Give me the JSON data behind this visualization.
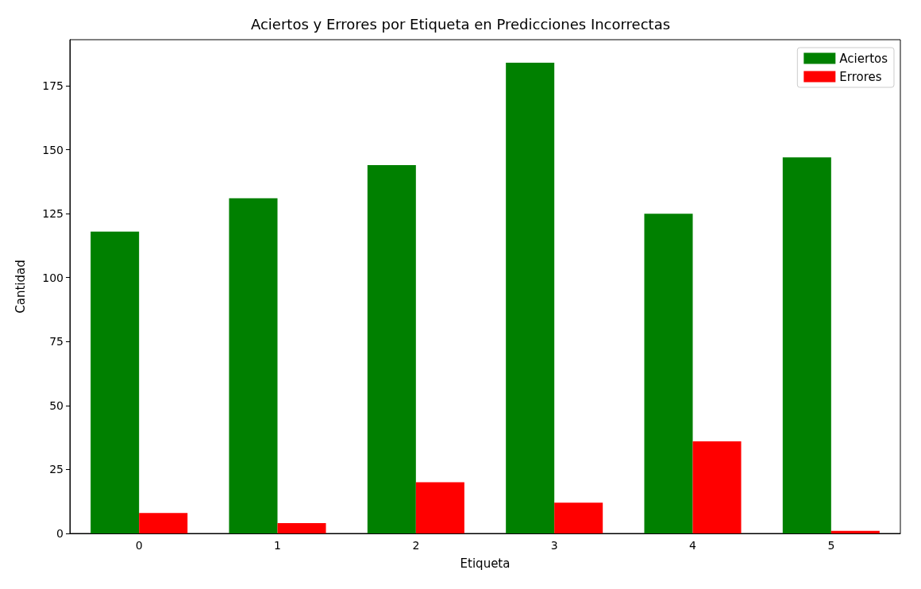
{
  "chart_data": {
    "type": "bar",
    "title": "Aciertos y Errores por Etiqueta en Predicciones Incorrectas",
    "xlabel": "Etiqueta",
    "ylabel": "Cantidad",
    "categories": [
      "0",
      "1",
      "2",
      "3",
      "4",
      "5"
    ],
    "series": [
      {
        "name": "Aciertos",
        "color": "#008000",
        "values": [
          118,
          131,
          144,
          184,
          125,
          147
        ]
      },
      {
        "name": "Errores",
        "color": "#ff0000",
        "values": [
          8,
          4,
          20,
          12,
          36,
          1
        ]
      }
    ],
    "ylim": [
      0,
      193
    ],
    "yticks": [
      0,
      25,
      50,
      75,
      100,
      125,
      150,
      175
    ],
    "grid": false,
    "legend": "top right"
  }
}
